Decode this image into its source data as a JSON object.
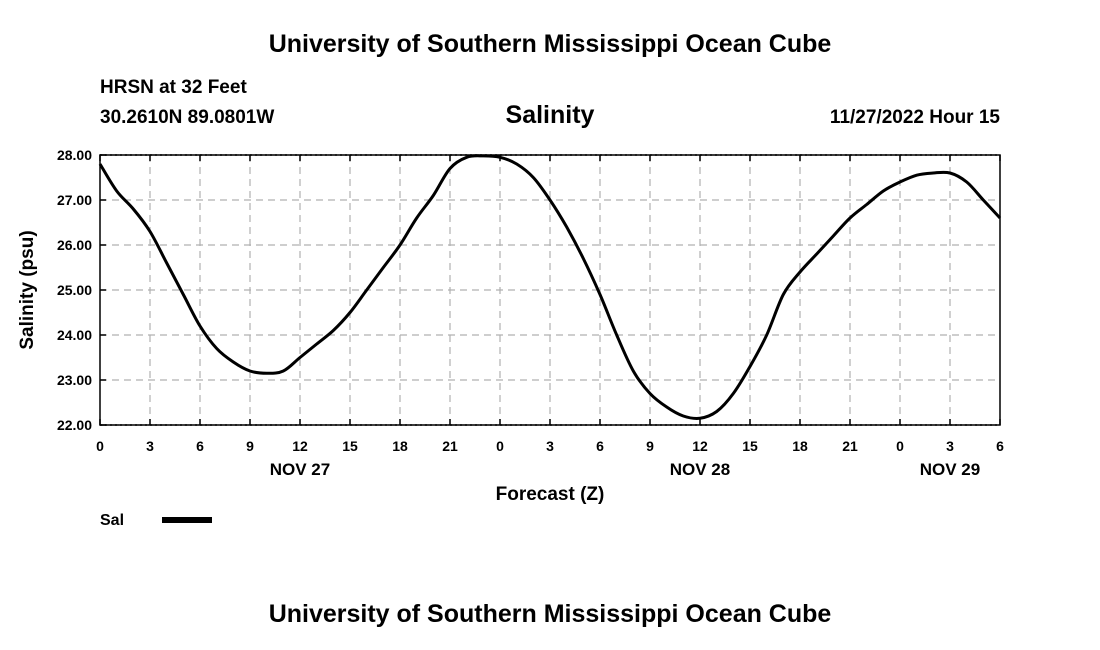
{
  "header": {
    "top_title": "University of Southern Mississippi Ocean Cube",
    "station": "HRSN at 32 Feet",
    "coords": "30.2610N  89.0801W",
    "timestamp": "11/27/2022 Hour 15"
  },
  "footer": {
    "title": "University of Southern Mississippi Ocean Cube"
  },
  "chart_data": {
    "type": "line",
    "title": "Salinity",
    "xlabel": "Forecast (Z)",
    "ylabel": "Salinity (psu)",
    "ylim": [
      22.0,
      28.0
    ],
    "y_ticks": [
      "22.00",
      "23.00",
      "24.00",
      "25.00",
      "26.00",
      "27.00",
      "28.00"
    ],
    "xlim": [
      0,
      54
    ],
    "x_tick_labels": [
      "0",
      "3",
      "6",
      "9",
      "12",
      "15",
      "18",
      "21",
      "0",
      "3",
      "6",
      "9",
      "12",
      "15",
      "18",
      "21",
      "0",
      "3",
      "6"
    ],
    "x_tick_hours": [
      0,
      3,
      6,
      9,
      12,
      15,
      18,
      21,
      24,
      27,
      30,
      33,
      36,
      39,
      42,
      45,
      48,
      51,
      54
    ],
    "day_labels": [
      {
        "label": "NOV 27",
        "hour": 12
      },
      {
        "label": "NOV 28",
        "hour": 36
      },
      {
        "label": "NOV 29",
        "hour": 51
      }
    ],
    "grid": true,
    "line_color": "#000000",
    "legend": {
      "label": "Sal",
      "placement": "bottom-left"
    },
    "series": [
      {
        "name": "Sal",
        "x": [
          0,
          1,
          2,
          3,
          4,
          5,
          6,
          7,
          8,
          9,
          10,
          11,
          12,
          13,
          14,
          15,
          16,
          17,
          18,
          19,
          20,
          21,
          22,
          23,
          24,
          25,
          26,
          27,
          28,
          29,
          30,
          31,
          32,
          33,
          34,
          35,
          36,
          37,
          38,
          39,
          40,
          41,
          42,
          43,
          44,
          45,
          46,
          47,
          48,
          49,
          50,
          51,
          52,
          53,
          54
        ],
        "values": [
          27.8,
          27.2,
          26.8,
          26.3,
          25.6,
          24.9,
          24.2,
          23.7,
          23.4,
          23.2,
          23.15,
          23.2,
          23.5,
          23.8,
          24.1,
          24.5,
          25.0,
          25.5,
          26.0,
          26.6,
          27.1,
          27.7,
          27.95,
          27.98,
          27.95,
          27.8,
          27.5,
          27.0,
          26.4,
          25.7,
          24.9,
          24.0,
          23.2,
          22.7,
          22.4,
          22.2,
          22.15,
          22.3,
          22.7,
          23.3,
          24.0,
          24.9,
          25.4,
          25.8,
          26.2,
          26.6,
          26.9,
          27.2,
          27.4,
          27.55,
          27.6,
          27.6,
          27.4,
          27.0,
          26.6
        ]
      }
    ]
  }
}
